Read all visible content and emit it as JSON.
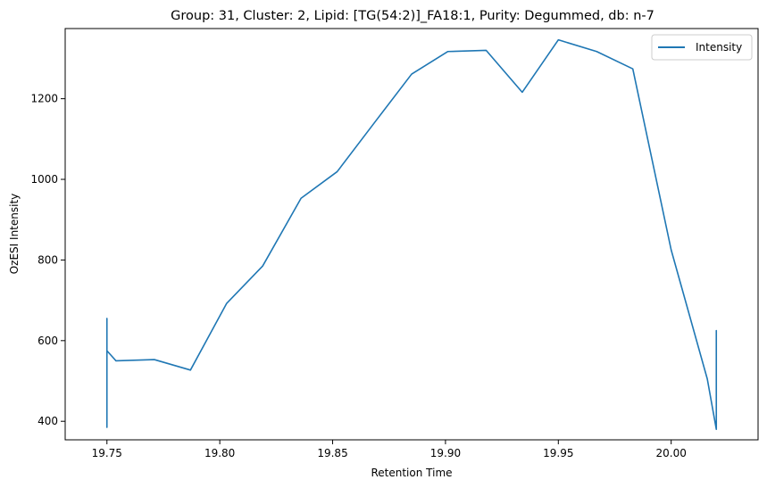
{
  "chart_data": {
    "type": "line",
    "title": "Group: 31, Cluster: 2, Lipid: [TG(54:2)]_FA18:1, Purity: Degummed, db: n-7",
    "xlabel": "Retention Time",
    "ylabel": "OzESI Intensity",
    "xlim": [
      19.7315,
      20.0385
    ],
    "ylim": [
      354,
      1374
    ],
    "xticks": [
      19.75,
      19.8,
      19.85,
      19.9,
      19.95,
      20.0
    ],
    "xtick_labels": [
      "19.75",
      "19.80",
      "19.85",
      "19.90",
      "19.95",
      "20.00"
    ],
    "yticks": [
      400,
      600,
      800,
      1000,
      1200
    ],
    "ytick_labels": [
      "400",
      "600",
      "800",
      "1000",
      "1200"
    ],
    "grid": false,
    "legend_position": "top-right",
    "series": [
      {
        "name": "Intensity",
        "color": "#1f77b4",
        "x": [
          19.75,
          19.75,
          19.75,
          19.75,
          19.75,
          19.754,
          19.771,
          19.787,
          19.803,
          19.819,
          19.836,
          19.852,
          19.869,
          19.885,
          19.901,
          19.918,
          19.934,
          19.95,
          19.967,
          19.983,
          20.0,
          20.016,
          20.02,
          20.02,
          20.02,
          20.02
        ],
        "y": [
          385,
          655,
          560,
          620,
          575,
          550,
          553,
          527,
          692,
          785,
          953,
          1019,
          1144,
          1261,
          1317,
          1320,
          1216,
          1346,
          1317,
          1274,
          825,
          505,
          380,
          625,
          440,
          560
        ]
      }
    ]
  }
}
